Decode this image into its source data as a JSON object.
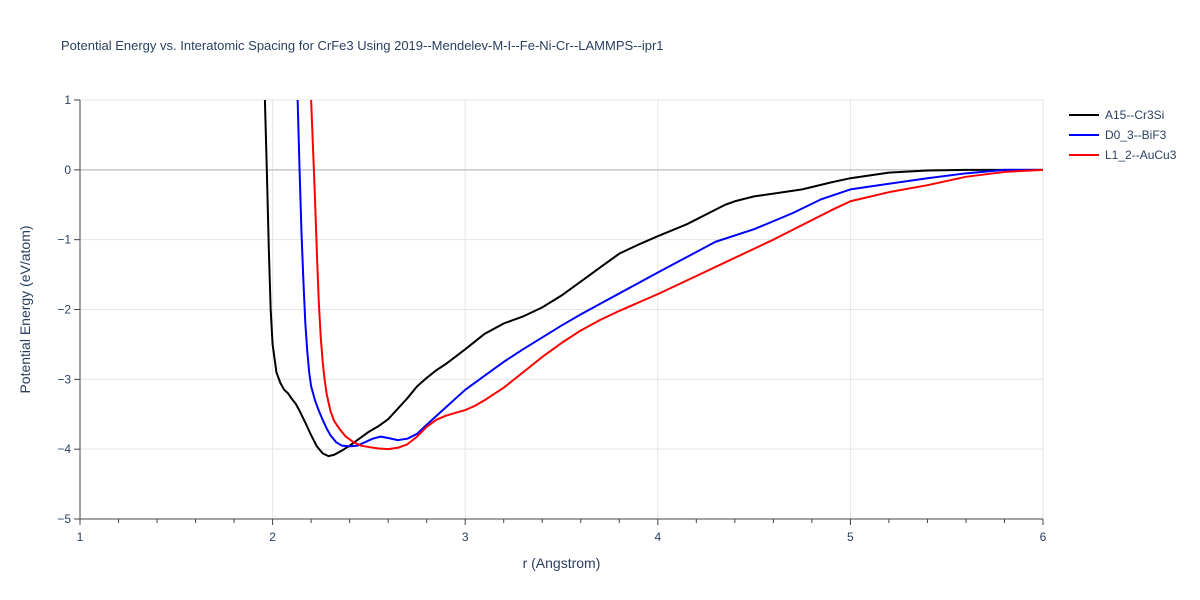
{
  "chart_data": {
    "type": "line",
    "title": "Potential Energy vs. Interatomic Spacing for CrFe3 Using 2019--Mendelev-M-I--Fe-Ni-Cr--LAMMPS--ipr1",
    "xlabel": "r (Angstrom)",
    "ylabel": "Potential Energy (eV/atom)",
    "xlim": [
      1,
      6
    ],
    "ylim": [
      -5,
      1
    ],
    "xticks": [
      1,
      2,
      3,
      4,
      5,
      6
    ],
    "xtick_labels": [
      "1",
      "2",
      "3",
      "4",
      "5",
      "6"
    ],
    "yticks": [
      -5,
      -4,
      -3,
      -2,
      -1,
      0,
      1
    ],
    "ytick_labels": [
      "−5",
      "−4",
      "−3",
      "−2",
      "−1",
      "0",
      "1"
    ],
    "grid": true,
    "legend_position": "top-right",
    "series": [
      {
        "name": "A15--Cr3Si",
        "color": "#000000",
        "x": [
          1.96,
          1.97,
          1.98,
          1.99,
          2.0,
          2.02,
          2.04,
          2.06,
          2.08,
          2.1,
          2.12,
          2.14,
          2.17,
          2.2,
          2.23,
          2.26,
          2.29,
          2.32,
          2.36,
          2.4,
          2.45,
          2.5,
          2.55,
          2.6,
          2.65,
          2.7,
          2.75,
          2.8,
          2.85,
          2.9,
          3.0,
          3.1,
          3.2,
          3.3,
          3.4,
          3.5,
          3.6,
          3.7,
          3.8,
          3.9,
          4.0,
          4.15,
          4.3,
          4.35,
          4.4,
          4.5,
          4.6,
          4.75,
          4.9,
          5.0,
          5.2,
          5.4,
          5.6,
          5.8,
          6.0
        ],
        "y": [
          1.0,
          0.0,
          -1.1,
          -2.0,
          -2.5,
          -2.9,
          -3.05,
          -3.15,
          -3.2,
          -3.28,
          -3.35,
          -3.45,
          -3.62,
          -3.8,
          -3.96,
          -4.06,
          -4.1,
          -4.08,
          -4.02,
          -3.95,
          -3.85,
          -3.75,
          -3.67,
          -3.57,
          -3.42,
          -3.27,
          -3.1,
          -2.98,
          -2.87,
          -2.78,
          -2.57,
          -2.35,
          -2.2,
          -2.1,
          -1.97,
          -1.8,
          -1.6,
          -1.4,
          -1.2,
          -1.07,
          -0.95,
          -0.78,
          -0.57,
          -0.5,
          -0.45,
          -0.38,
          -0.34,
          -0.28,
          -0.18,
          -0.12,
          -0.04,
          -0.01,
          0.0,
          0.0,
          0.0
        ]
      },
      {
        "name": "D0_3--BiF3",
        "color": "#0000ff",
        "x": [
          2.13,
          2.14,
          2.15,
          2.16,
          2.17,
          2.18,
          2.19,
          2.2,
          2.22,
          2.24,
          2.26,
          2.28,
          2.3,
          2.33,
          2.36,
          2.4,
          2.44,
          2.48,
          2.52,
          2.56,
          2.6,
          2.65,
          2.7,
          2.75,
          2.8,
          2.9,
          3.0,
          3.1,
          3.2,
          3.3,
          3.4,
          3.5,
          3.6,
          3.7,
          3.8,
          3.9,
          4.0,
          4.15,
          4.3,
          4.5,
          4.7,
          4.85,
          5.0,
          5.2,
          5.4,
          5.6,
          5.8,
          6.0
        ],
        "y": [
          1.0,
          0.0,
          -0.9,
          -1.6,
          -2.2,
          -2.6,
          -2.9,
          -3.1,
          -3.3,
          -3.45,
          -3.58,
          -3.7,
          -3.8,
          -3.9,
          -3.95,
          -3.96,
          -3.95,
          -3.9,
          -3.85,
          -3.82,
          -3.84,
          -3.87,
          -3.85,
          -3.78,
          -3.65,
          -3.4,
          -3.15,
          -2.95,
          -2.75,
          -2.57,
          -2.4,
          -2.23,
          -2.07,
          -1.92,
          -1.77,
          -1.62,
          -1.47,
          -1.25,
          -1.03,
          -0.85,
          -0.62,
          -0.42,
          -0.28,
          -0.2,
          -0.12,
          -0.05,
          0.0,
          0.0
        ]
      },
      {
        "name": "L1_2--AuCu3",
        "color": "#ff0000",
        "x": [
          2.2,
          2.21,
          2.22,
          2.23,
          2.24,
          2.25,
          2.26,
          2.27,
          2.28,
          2.3,
          2.32,
          2.35,
          2.38,
          2.42,
          2.46,
          2.5,
          2.55,
          2.6,
          2.65,
          2.7,
          2.75,
          2.8,
          2.85,
          2.9,
          2.95,
          3.0,
          3.05,
          3.1,
          3.2,
          3.3,
          3.4,
          3.5,
          3.6,
          3.7,
          3.8,
          3.9,
          4.0,
          4.2,
          4.4,
          4.6,
          4.8,
          4.9,
          5.0,
          5.2,
          5.4,
          5.6,
          5.8,
          6.0
        ],
        "y": [
          1.0,
          0.3,
          -0.4,
          -1.2,
          -1.9,
          -2.4,
          -2.75,
          -3.0,
          -3.2,
          -3.45,
          -3.6,
          -3.72,
          -3.82,
          -3.9,
          -3.95,
          -3.97,
          -3.99,
          -4.0,
          -3.98,
          -3.93,
          -3.82,
          -3.68,
          -3.58,
          -3.52,
          -3.48,
          -3.44,
          -3.38,
          -3.3,
          -3.12,
          -2.9,
          -2.68,
          -2.48,
          -2.3,
          -2.15,
          -2.02,
          -1.9,
          -1.78,
          -1.52,
          -1.26,
          -1.0,
          -0.72,
          -0.58,
          -0.45,
          -0.32,
          -0.22,
          -0.1,
          -0.03,
          0.0
        ]
      }
    ]
  }
}
